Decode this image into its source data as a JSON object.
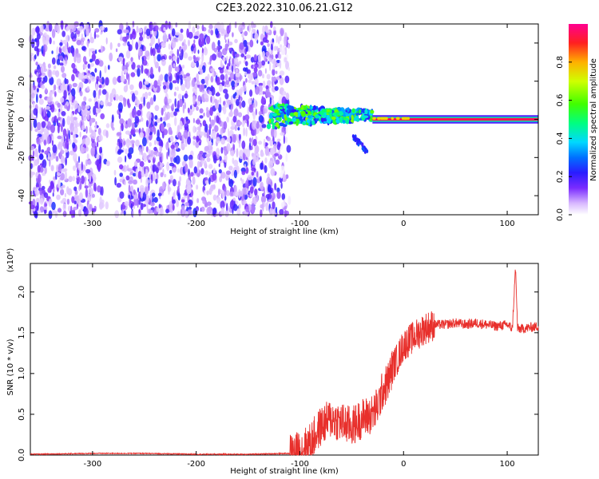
{
  "title": "C2E3.2022.310.06.21.G12",
  "chart_data": [
    {
      "type": "heatmap",
      "xlabel": "Height of straight line (km)",
      "ylabel": "Frequency (Hz)",
      "xlim": [
        -360,
        130
      ],
      "ylim": [
        -50,
        50
      ],
      "x_ticks": [
        -300,
        -200,
        -100,
        0,
        100
      ],
      "y_ticks": [
        -40,
        -20,
        0,
        20,
        40
      ],
      "colorbar": {
        "label": "Normalized spectral amplitude",
        "range": [
          0,
          1
        ],
        "ticks": [
          "0.0",
          "0.2",
          "0.4",
          "0.6",
          "0.8"
        ]
      },
      "regions": [
        {
          "name": "noise",
          "x_range": [
            -360,
            -110
          ],
          "freq_range": [
            -50,
            50
          ],
          "amplitude": 0.1
        },
        {
          "name": "signal-onset",
          "x_range": [
            -130,
            -30
          ],
          "freq_center": 2,
          "amplitude": 0.45
        },
        {
          "name": "carrier",
          "x_range": [
            -30,
            130
          ],
          "freq_center": 0,
          "amplitude": 0.95
        }
      ]
    },
    {
      "type": "line",
      "xlabel": "Height of straight line (km)",
      "ylabel": "SNR (10 * v/v)",
      "y_multiplier": "(x10⁴)",
      "xlim": [
        -360,
        130
      ],
      "ylim": [
        0,
        2.35
      ],
      "x_ticks": [
        -300,
        -200,
        -100,
        0,
        100
      ],
      "y_ticks": [
        "0.0",
        "0.5",
        "1.0",
        "1.5",
        "2.0"
      ],
      "series": [
        {
          "color": "#e8302c",
          "x": [
            -360,
            -300,
            -250,
            -200,
            -150,
            -110,
            -100,
            -90,
            -80,
            -70,
            -60,
            -50,
            -40,
            -30,
            -25,
            -20,
            -15,
            -10,
            -5,
            0,
            10,
            20,
            30,
            40,
            50,
            60,
            70,
            80,
            90,
            100,
            105,
            108,
            110,
            115,
            130
          ],
          "y": [
            0.01,
            0.02,
            0.02,
            0.01,
            0.01,
            0.02,
            0.05,
            0.15,
            0.35,
            0.45,
            0.4,
            0.35,
            0.45,
            0.5,
            0.6,
            0.8,
            0.9,
            1.1,
            1.2,
            1.35,
            1.45,
            1.55,
            1.6,
            1.6,
            1.62,
            1.6,
            1.62,
            1.6,
            1.58,
            1.6,
            1.55,
            2.3,
            1.55,
            1.55,
            1.58
          ]
        }
      ]
    }
  ]
}
